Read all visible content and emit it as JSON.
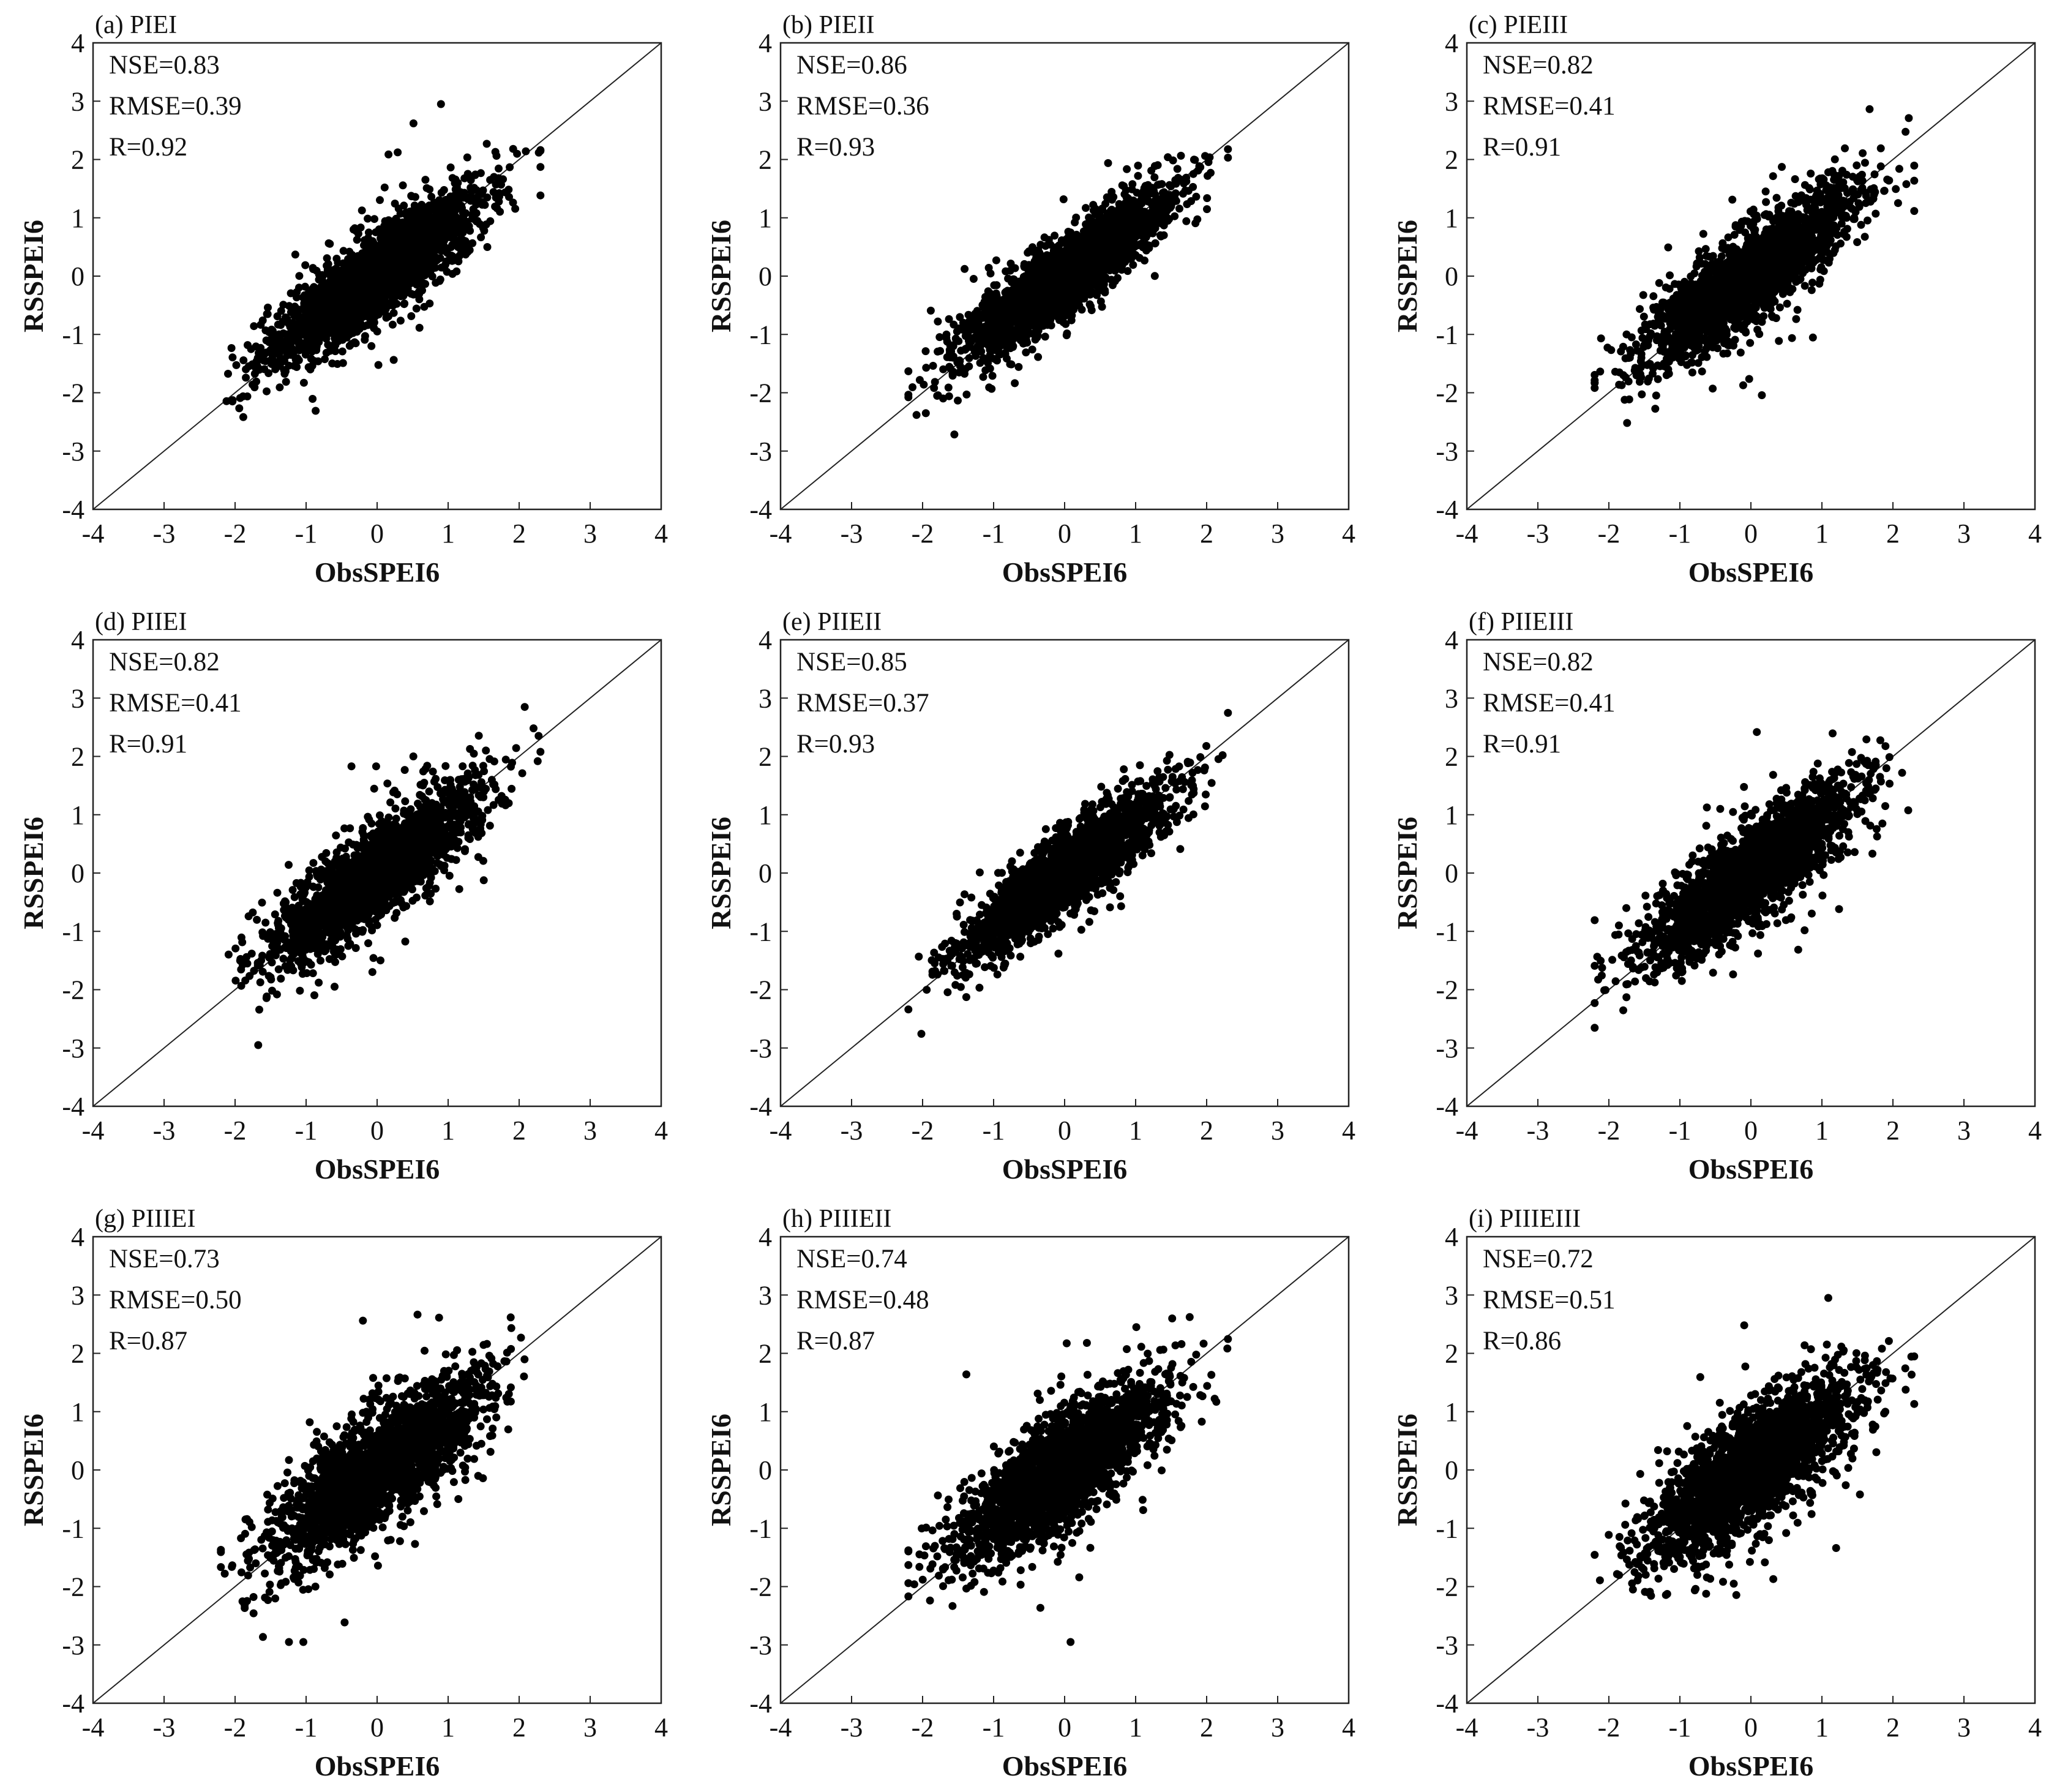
{
  "figure": {
    "kind": "scatter-grid",
    "rows": 3,
    "cols": 3
  },
  "chart_data": [
    {
      "type": "scatter",
      "panel_label": "(a) PIEI",
      "title": "PIEI",
      "stats": {
        "nse": "NSE=0.83",
        "rmse": "RMSE=0.39",
        "r": "R=0.92"
      },
      "xlabel": "ObsSPEI6",
      "ylabel": "RSSPEI6",
      "xlim": [
        -4,
        4
      ],
      "ylim": [
        -4,
        4
      ],
      "xticks": [
        -4,
        -3,
        -2,
        -1,
        0,
        1,
        2,
        3,
        4
      ],
      "yticks": [
        -4,
        -3,
        -2,
        -1,
        0,
        1,
        2,
        3,
        4
      ],
      "reference_line": "1:1",
      "points": {
        "n": 2200,
        "x_range": [
          -2.2,
          2.3
        ],
        "slope": 0.85,
        "spread": 0.36,
        "seed": 11
      }
    },
    {
      "type": "scatter",
      "panel_label": "(b) PIEII",
      "title": "PIEII",
      "stats": {
        "nse": "NSE=0.86",
        "rmse": "RMSE=0.36",
        "r": "R=0.93"
      },
      "xlabel": "ObsSPEI6",
      "ylabel": "RSSPEI6",
      "xlim": [
        -4,
        4
      ],
      "ylim": [
        -4,
        4
      ],
      "xticks": [
        -4,
        -3,
        -2,
        -1,
        0,
        1,
        2,
        3,
        4
      ],
      "yticks": [
        -4,
        -3,
        -2,
        -1,
        0,
        1,
        2,
        3,
        4
      ],
      "reference_line": "1:1",
      "points": {
        "n": 2200,
        "x_range": [
          -2.2,
          2.3
        ],
        "slope": 0.87,
        "spread": 0.33,
        "seed": 23
      }
    },
    {
      "type": "scatter",
      "panel_label": "(c) PIEIII",
      "title": "PIEIII",
      "stats": {
        "nse": "NSE=0.82",
        "rmse": "RMSE=0.41",
        "r": "R=0.91"
      },
      "xlabel": "ObsSPEI6",
      "ylabel": "RSSPEI6",
      "xlim": [
        -4,
        4
      ],
      "ylim": [
        -4,
        4
      ],
      "xticks": [
        -4,
        -3,
        -2,
        -1,
        0,
        1,
        2,
        3,
        4
      ],
      "yticks": [
        -4,
        -3,
        -2,
        -1,
        0,
        1,
        2,
        3,
        4
      ],
      "reference_line": "1:1",
      "points": {
        "n": 2200,
        "x_range": [
          -2.2,
          2.3
        ],
        "slope": 0.84,
        "spread": 0.38,
        "seed": 37
      }
    },
    {
      "type": "scatter",
      "panel_label": "(d) PIIEI",
      "title": "PIIEI",
      "stats": {
        "nse": "NSE=0.82",
        "rmse": "RMSE=0.41",
        "r": "R=0.91"
      },
      "xlabel": "ObsSPEI6",
      "ylabel": "RSSPEI6",
      "xlim": [
        -4,
        4
      ],
      "ylim": [
        -4,
        4
      ],
      "xticks": [
        -4,
        -3,
        -2,
        -1,
        0,
        1,
        2,
        3,
        4
      ],
      "yticks": [
        -4,
        -3,
        -2,
        -1,
        0,
        1,
        2,
        3,
        4
      ],
      "reference_line": "1:1",
      "points": {
        "n": 2200,
        "x_range": [
          -2.2,
          2.3
        ],
        "slope": 0.86,
        "spread": 0.38,
        "seed": 41
      }
    },
    {
      "type": "scatter",
      "panel_label": "(e) PIIEII",
      "title": "PIIEII",
      "stats": {
        "nse": "NSE=0.85",
        "rmse": "RMSE=0.37",
        "r": "R=0.93"
      },
      "xlabel": "ObsSPEI6",
      "ylabel": "RSSPEI6",
      "xlim": [
        -4,
        4
      ],
      "ylim": [
        -4,
        4
      ],
      "xticks": [
        -4,
        -3,
        -2,
        -1,
        0,
        1,
        2,
        3,
        4
      ],
      "yticks": [
        -4,
        -3,
        -2,
        -1,
        0,
        1,
        2,
        3,
        4
      ],
      "reference_line": "1:1",
      "points": {
        "n": 2200,
        "x_range": [
          -2.2,
          2.3
        ],
        "slope": 0.88,
        "spread": 0.34,
        "seed": 53
      }
    },
    {
      "type": "scatter",
      "panel_label": "(f) PIIEIII",
      "title": "PIIEIII",
      "stats": {
        "nse": "NSE=0.82",
        "rmse": "RMSE=0.41",
        "r": "R=0.91"
      },
      "xlabel": "ObsSPEI6",
      "ylabel": "RSSPEI6",
      "xlim": [
        -4,
        4
      ],
      "ylim": [
        -4,
        4
      ],
      "xticks": [
        -4,
        -3,
        -2,
        -1,
        0,
        1,
        2,
        3,
        4
      ],
      "yticks": [
        -4,
        -3,
        -2,
        -1,
        0,
        1,
        2,
        3,
        4
      ],
      "reference_line": "1:1",
      "points": {
        "n": 2200,
        "x_range": [
          -2.2,
          2.3
        ],
        "slope": 0.86,
        "spread": 0.38,
        "seed": 67
      }
    },
    {
      "type": "scatter",
      "panel_label": "(g) PIIIEI",
      "title": "PIIIEI",
      "stats": {
        "nse": "NSE=0.73",
        "rmse": "RMSE=0.50",
        "r": "R=0.87"
      },
      "xlabel": "ObsSPEI6",
      "ylabel": "RSSPEI6",
      "xlim": [
        -4,
        4
      ],
      "ylim": [
        -4,
        4
      ],
      "xticks": [
        -4,
        -3,
        -2,
        -1,
        0,
        1,
        2,
        3,
        4
      ],
      "yticks": [
        -4,
        -3,
        -2,
        -1,
        0,
        1,
        2,
        3,
        4
      ],
      "reference_line": "1:1",
      "points": {
        "n": 2200,
        "x_range": [
          -2.2,
          2.3
        ],
        "slope": 0.82,
        "spread": 0.47,
        "seed": 71
      }
    },
    {
      "type": "scatter",
      "panel_label": "(h) PIIIEII",
      "title": "PIIIEII",
      "stats": {
        "nse": "NSE=0.74",
        "rmse": "RMSE=0.48",
        "r": "R=0.87"
      },
      "xlabel": "ObsSPEI6",
      "ylabel": "RSSPEI6",
      "xlim": [
        -4,
        4
      ],
      "ylim": [
        -4,
        4
      ],
      "xticks": [
        -4,
        -3,
        -2,
        -1,
        0,
        1,
        2,
        3,
        4
      ],
      "yticks": [
        -4,
        -3,
        -2,
        -1,
        0,
        1,
        2,
        3,
        4
      ],
      "reference_line": "1:1",
      "points": {
        "n": 2200,
        "x_range": [
          -2.2,
          2.3
        ],
        "slope": 0.83,
        "spread": 0.46,
        "seed": 83
      }
    },
    {
      "type": "scatter",
      "panel_label": "(i) PIIIEIII",
      "title": "PIIIEIII",
      "stats": {
        "nse": "NSE=0.72",
        "rmse": "RMSE=0.51",
        "r": "R=0.86"
      },
      "xlabel": "ObsSPEI6",
      "ylabel": "RSSPEI6",
      "xlim": [
        -4,
        4
      ],
      "ylim": [
        -4,
        4
      ],
      "xticks": [
        -4,
        -3,
        -2,
        -1,
        0,
        1,
        2,
        3,
        4
      ],
      "yticks": [
        -4,
        -3,
        -2,
        -1,
        0,
        1,
        2,
        3,
        4
      ],
      "reference_line": "1:1",
      "points": {
        "n": 2200,
        "x_range": [
          -2.2,
          2.3
        ],
        "slope": 0.82,
        "spread": 0.48,
        "seed": 97
      }
    }
  ]
}
